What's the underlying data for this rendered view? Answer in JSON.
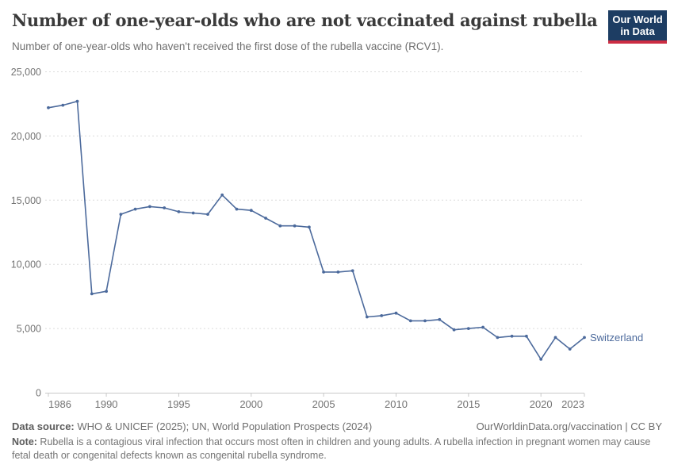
{
  "header": {
    "title": "Number of one-year-olds who are not vaccinated against rubella",
    "subtitle": "Number of one-year-olds who haven't received the first dose of the rubella vaccine (RCV1).",
    "logo_line1": "Our World",
    "logo_line2": "in Data"
  },
  "chart_data": {
    "type": "line",
    "title": "Number of one-year-olds who are not vaccinated against rubella",
    "entity": "Switzerland",
    "x": [
      1986,
      1987,
      1988,
      1989,
      1990,
      1991,
      1992,
      1993,
      1994,
      1995,
      1996,
      1997,
      1998,
      1999,
      2000,
      2001,
      2002,
      2003,
      2004,
      2005,
      2006,
      2007,
      2008,
      2009,
      2010,
      2011,
      2012,
      2013,
      2014,
      2015,
      2016,
      2017,
      2018,
      2019,
      2020,
      2021,
      2022,
      2023
    ],
    "values": [
      22200,
      22400,
      22700,
      7700,
      7900,
      13900,
      14300,
      14500,
      14400,
      14100,
      14000,
      13900,
      15400,
      14300,
      14200,
      13600,
      13000,
      13000,
      12900,
      9400,
      9400,
      9500,
      5900,
      6000,
      6200,
      5600,
      5600,
      5700,
      4900,
      5000,
      5100,
      4300,
      4400,
      4400,
      2600,
      4300,
      3400,
      4300
    ],
    "xlabel": "",
    "ylabel": "",
    "ylim": [
      0,
      25000
    ],
    "yticks": [
      0,
      5000,
      10000,
      15000,
      20000,
      25000
    ],
    "ytick_labels": [
      "0",
      "5,000",
      "10,000",
      "15,000",
      "20,000",
      "25,000"
    ],
    "xticks": [
      1986,
      1990,
      1995,
      2000,
      2005,
      2010,
      2015,
      2020,
      2023
    ],
    "xtick_labels": [
      "1986",
      "1990",
      "1995",
      "2000",
      "2005",
      "2010",
      "2015",
      "2020",
      "2023"
    ],
    "grid": true,
    "legend_position": "end-of-line",
    "line_color": "#4c6a9c"
  },
  "colors": {
    "accent_blue": "#4c6a9c",
    "logo_navy": "#1d3d63",
    "logo_red": "#cc2d43",
    "grid_gray": "#dcdcdc",
    "axis_gray": "#c9c9c9",
    "tick_text": "#737373"
  },
  "footer": {
    "datasource_label": "Data source:",
    "datasource_text": " WHO & UNICEF (2025); UN, World Population Prospects (2024)",
    "link_text": "OurWorldinData.org/vaccination | CC BY",
    "note_label": "Note:",
    "note_text": " Rubella is a contagious viral infection that occurs most often in children and young adults. A rubella infection in pregnant women may cause fetal death or congenital defects known as congenital rubella syndrome."
  }
}
